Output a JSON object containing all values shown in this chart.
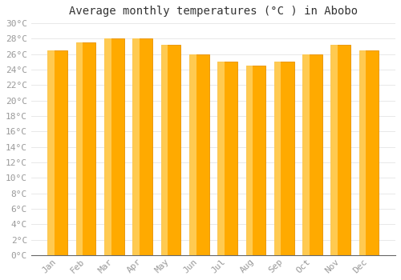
{
  "title": "Average monthly temperatures (°C ) in Abobo",
  "months": [
    "Jan",
    "Feb",
    "Mar",
    "Apr",
    "May",
    "Jun",
    "Jul",
    "Aug",
    "Sep",
    "Oct",
    "Nov",
    "Dec"
  ],
  "values": [
    26.5,
    27.5,
    28.0,
    28.0,
    27.2,
    26.0,
    25.0,
    24.5,
    25.0,
    26.0,
    27.2,
    26.5
  ],
  "bar_color_main": "#FFAA00",
  "bar_color_light": "#FFD060",
  "bar_color_edge": "#E89000",
  "background_color": "#FFFFFF",
  "plot_bg_color": "#FFFFFF",
  "grid_color": "#E8E8E8",
  "ylim": [
    0,
    30
  ],
  "ytick_step": 2,
  "title_fontsize": 10,
  "tick_fontsize": 8,
  "tick_color": "#999999",
  "axis_color": "#999999",
  "font_family": "monospace",
  "bar_width": 0.7
}
